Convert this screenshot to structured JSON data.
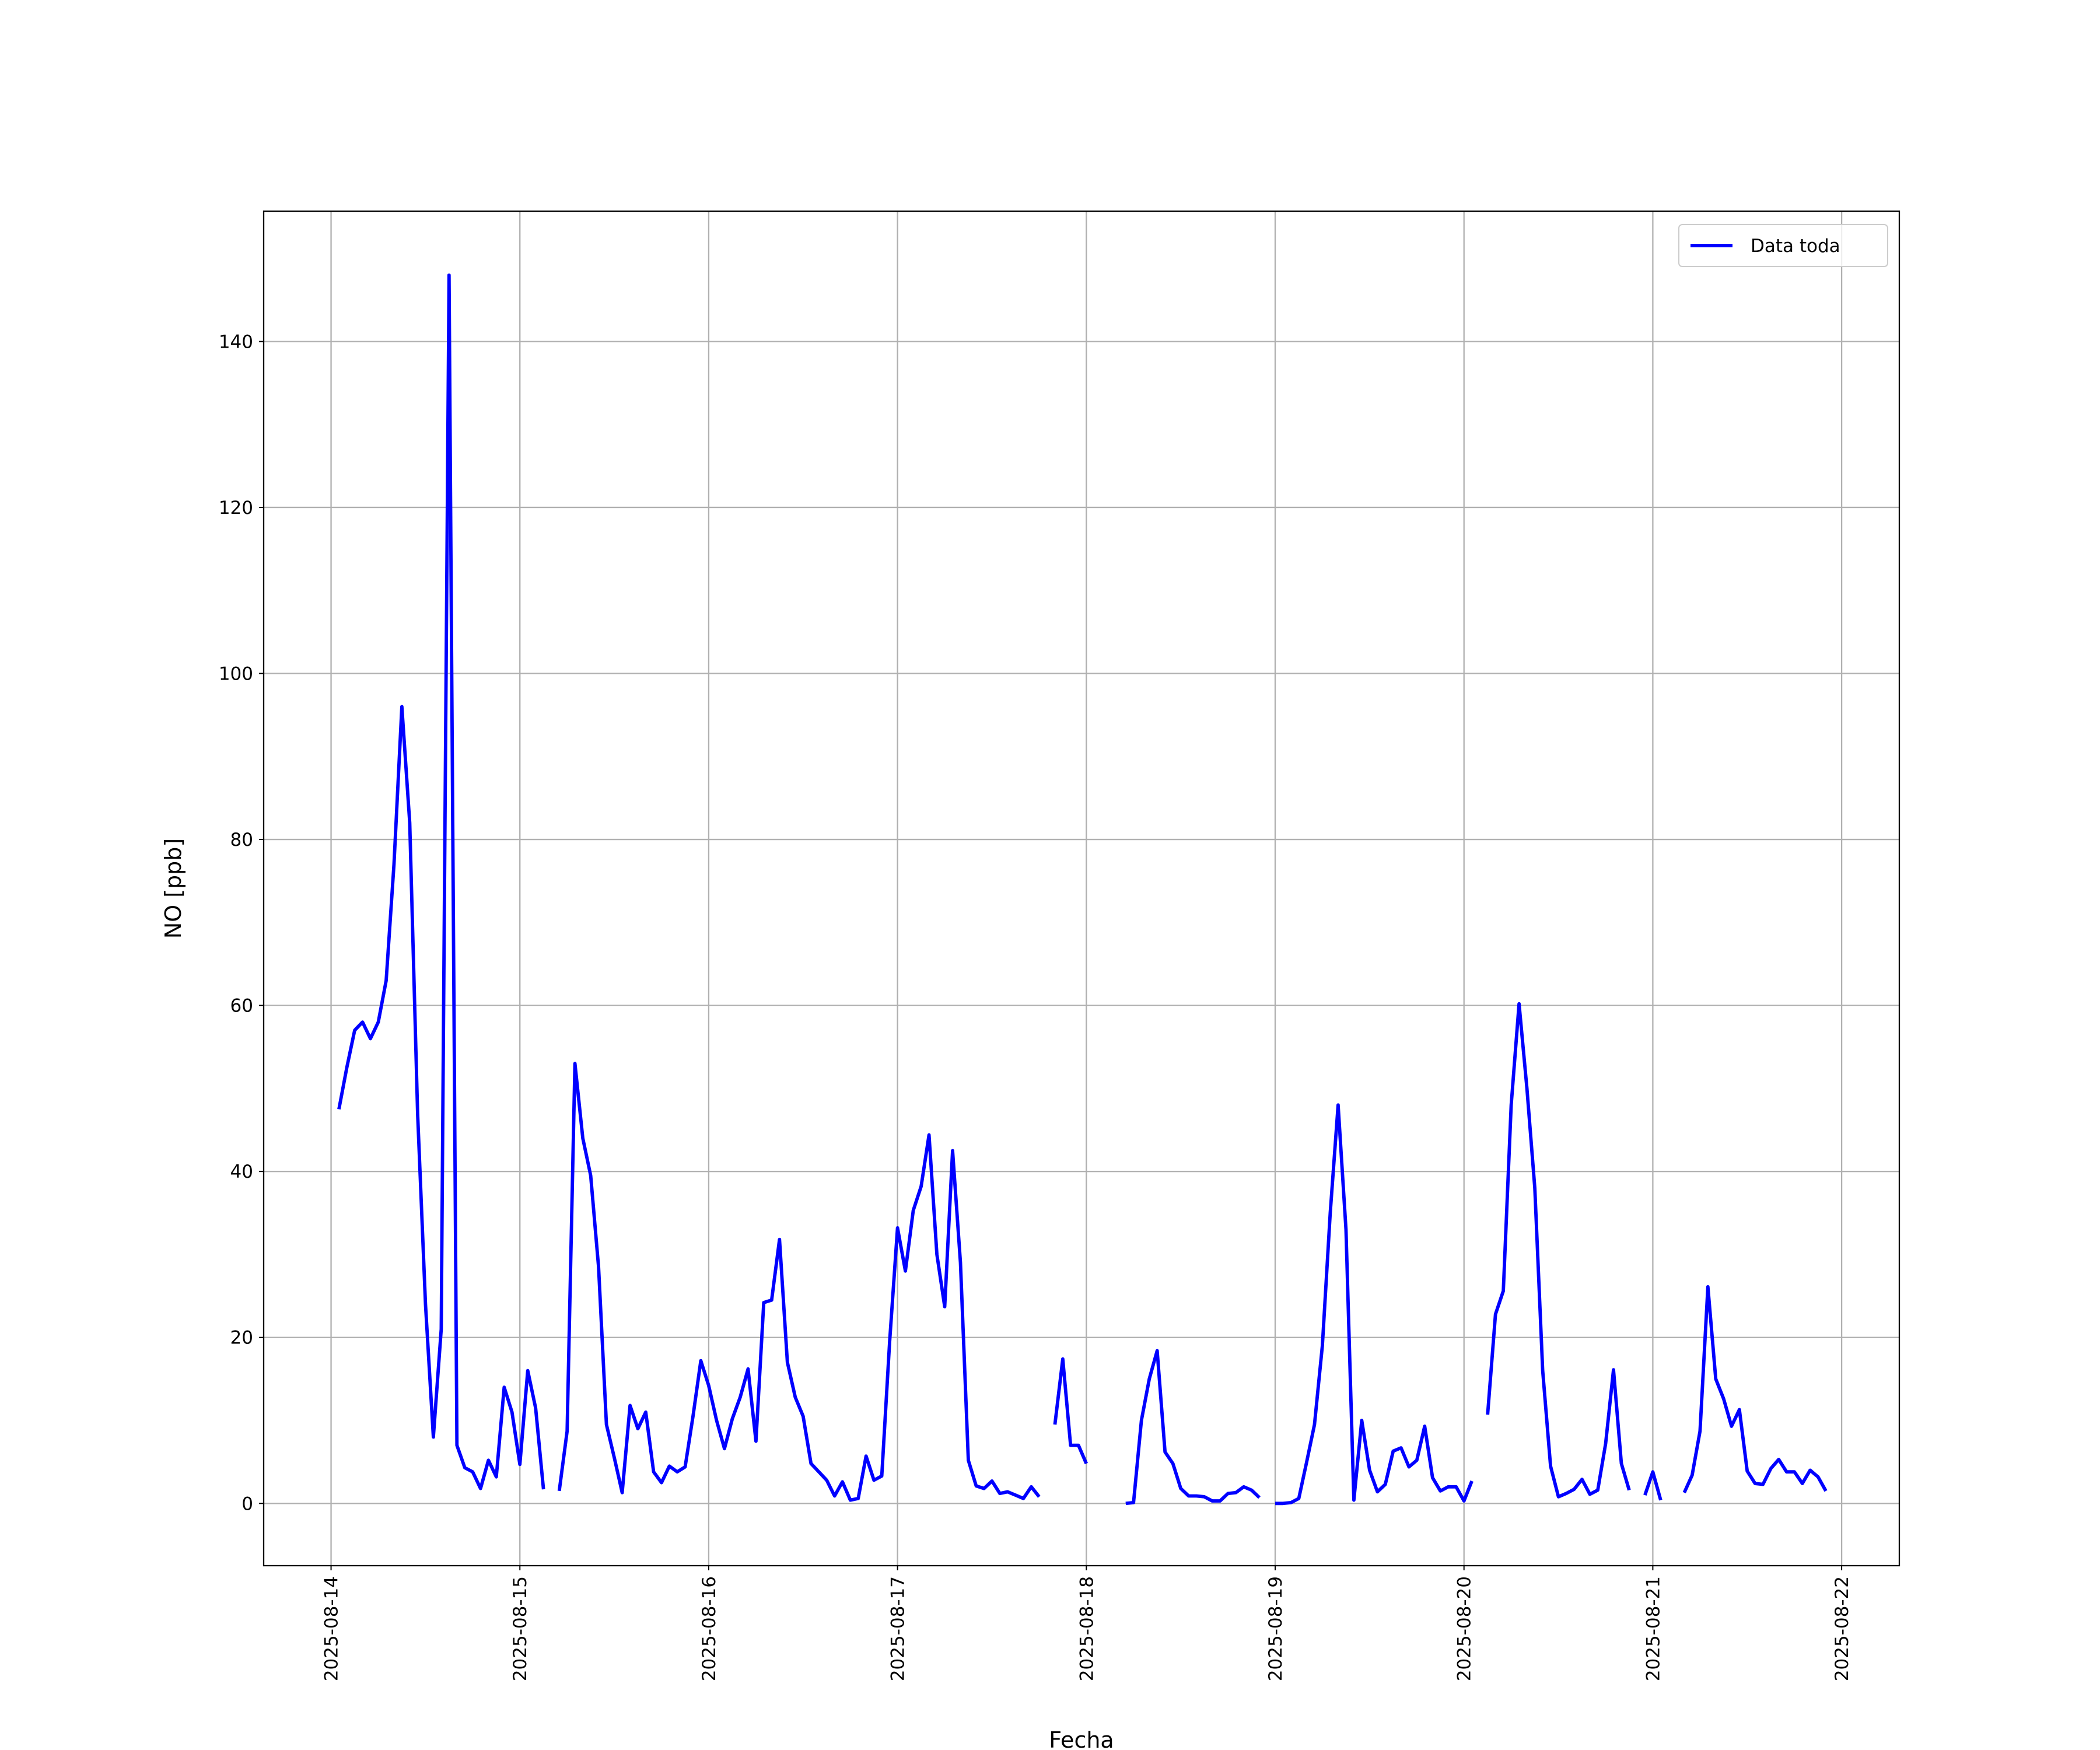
{
  "chart_data": {
    "type": "line",
    "xlabel": "Fecha",
    "ylabel": "NO [ppb]",
    "x": [
      "2025-08-14T01:00",
      "2025-08-14T02:00",
      "2025-08-14T03:00",
      "2025-08-14T04:00",
      "2025-08-14T05:00",
      "2025-08-14T06:00",
      "2025-08-14T07:00",
      "2025-08-14T08:00",
      "2025-08-14T09:00",
      "2025-08-14T10:00",
      "2025-08-14T11:00",
      "2025-08-14T12:00",
      "2025-08-14T13:00",
      "2025-08-14T14:00",
      "2025-08-14T15:00",
      "2025-08-14T16:00",
      "2025-08-14T17:00",
      "2025-08-14T18:00",
      "2025-08-14T19:00",
      "2025-08-14T20:00",
      "2025-08-14T21:00",
      "2025-08-14T22:00",
      "2025-08-14T23:00",
      "2025-08-15T00:00",
      "2025-08-15T01:00",
      "2025-08-15T02:00",
      "2025-08-15T03:00",
      "2025-08-15T04:00",
      "2025-08-15T05:00",
      "2025-08-15T06:00",
      "2025-08-15T07:00",
      "2025-08-15T08:00",
      "2025-08-15T09:00",
      "2025-08-15T10:00",
      "2025-08-15T11:00",
      "2025-08-15T12:00",
      "2025-08-15T13:00",
      "2025-08-15T14:00",
      "2025-08-15T15:00",
      "2025-08-15T16:00",
      "2025-08-15T17:00",
      "2025-08-15T18:00",
      "2025-08-15T19:00",
      "2025-08-15T20:00",
      "2025-08-15T21:00",
      "2025-08-15T22:00",
      "2025-08-15T23:00",
      "2025-08-16T00:00",
      "2025-08-16T01:00",
      "2025-08-16T02:00",
      "2025-08-16T03:00",
      "2025-08-16T04:00",
      "2025-08-16T05:00",
      "2025-08-16T06:00",
      "2025-08-16T07:00",
      "2025-08-16T08:00",
      "2025-08-16T09:00",
      "2025-08-16T10:00",
      "2025-08-16T11:00",
      "2025-08-16T12:00",
      "2025-08-16T13:00",
      "2025-08-16T14:00",
      "2025-08-16T15:00",
      "2025-08-16T16:00",
      "2025-08-16T17:00",
      "2025-08-16T18:00",
      "2025-08-16T19:00",
      "2025-08-16T20:00",
      "2025-08-16T21:00",
      "2025-08-16T22:00",
      "2025-08-16T23:00",
      "2025-08-17T00:00",
      "2025-08-17T01:00",
      "2025-08-17T02:00",
      "2025-08-17T03:00",
      "2025-08-17T04:00",
      "2025-08-17T05:00",
      "2025-08-17T06:00",
      "2025-08-17T07:00",
      "2025-08-17T08:00",
      "2025-08-17T09:00",
      "2025-08-17T10:00",
      "2025-08-17T11:00",
      "2025-08-17T12:00",
      "2025-08-17T13:00",
      "2025-08-17T14:00",
      "2025-08-17T15:00",
      "2025-08-17T16:00",
      "2025-08-17T17:00",
      "2025-08-17T18:00",
      "2025-08-17T19:00",
      "2025-08-17T20:00",
      "2025-08-17T21:00",
      "2025-08-17T22:00",
      "2025-08-17T23:00",
      "2025-08-18T00:00",
      "2025-08-18T01:00",
      "2025-08-18T02:00",
      "2025-08-18T03:00",
      "2025-08-18T04:00",
      "2025-08-18T05:00",
      "2025-08-18T06:00",
      "2025-08-18T07:00",
      "2025-08-18T08:00",
      "2025-08-18T09:00",
      "2025-08-18T10:00",
      "2025-08-18T11:00",
      "2025-08-18T12:00",
      "2025-08-18T13:00",
      "2025-08-18T14:00",
      "2025-08-18T15:00",
      "2025-08-18T16:00",
      "2025-08-18T17:00",
      "2025-08-18T18:00",
      "2025-08-18T19:00",
      "2025-08-18T20:00",
      "2025-08-18T21:00",
      "2025-08-18T22:00",
      "2025-08-18T23:00",
      "2025-08-19T00:00",
      "2025-08-19T01:00",
      "2025-08-19T02:00",
      "2025-08-19T03:00",
      "2025-08-19T04:00",
      "2025-08-19T05:00",
      "2025-08-19T06:00",
      "2025-08-19T07:00",
      "2025-08-19T08:00",
      "2025-08-19T09:00",
      "2025-08-19T10:00",
      "2025-08-19T11:00",
      "2025-08-19T12:00",
      "2025-08-19T13:00",
      "2025-08-19T14:00",
      "2025-08-19T15:00",
      "2025-08-19T16:00",
      "2025-08-19T17:00",
      "2025-08-19T18:00",
      "2025-08-19T19:00",
      "2025-08-19T20:00",
      "2025-08-19T21:00",
      "2025-08-19T22:00",
      "2025-08-19T23:00",
      "2025-08-20T00:00",
      "2025-08-20T01:00",
      "2025-08-20T02:00",
      "2025-08-20T03:00",
      "2025-08-20T04:00",
      "2025-08-20T05:00",
      "2025-08-20T06:00",
      "2025-08-20T07:00",
      "2025-08-20T08:00",
      "2025-08-20T09:00",
      "2025-08-20T10:00",
      "2025-08-20T11:00",
      "2025-08-20T12:00",
      "2025-08-20T13:00",
      "2025-08-20T14:00",
      "2025-08-20T15:00",
      "2025-08-20T16:00",
      "2025-08-20T17:00",
      "2025-08-20T18:00",
      "2025-08-20T19:00",
      "2025-08-20T20:00",
      "2025-08-20T21:00",
      "2025-08-20T22:00",
      "2025-08-20T23:00",
      "2025-08-21T00:00",
      "2025-08-21T01:00",
      "2025-08-21T02:00",
      "2025-08-21T03:00",
      "2025-08-21T04:00",
      "2025-08-21T05:00",
      "2025-08-21T06:00",
      "2025-08-21T07:00",
      "2025-08-21T08:00",
      "2025-08-21T09:00",
      "2025-08-21T10:00",
      "2025-08-21T11:00",
      "2025-08-21T12:00",
      "2025-08-21T13:00",
      "2025-08-21T14:00",
      "2025-08-21T15:00",
      "2025-08-21T16:00",
      "2025-08-21T17:00",
      "2025-08-21T18:00",
      "2025-08-21T19:00",
      "2025-08-21T20:00",
      "2025-08-21T21:00",
      "2025-08-21T22:00"
    ],
    "series": [
      {
        "name": "Data toda",
        "color": "#0000ff",
        "values": [
          47.5,
          52.5,
          57,
          58,
          56,
          58,
          63,
          77,
          96,
          82,
          47,
          24,
          8,
          21,
          148,
          7,
          4.3,
          3.8,
          1.8,
          5.2,
          3.2,
          14,
          11,
          4.7,
          16,
          11.5,
          1.7,
          null,
          1.5,
          8.7,
          53,
          44,
          39.5,
          28.5,
          9.5,
          5.5,
          1.3,
          11.8,
          9,
          11,
          3.8,
          2.5,
          4.5,
          3.8,
          4.4,
          10.5,
          17.2,
          14.2,
          10,
          6.6,
          10.2,
          12.8,
          16.2,
          7.5,
          24.2,
          24.5,
          31.8,
          17,
          12.8,
          10.5,
          4.8,
          3.8,
          2.8,
          0.9,
          2.6,
          0.4,
          0.6,
          5.7,
          2.8,
          3.3,
          19.5,
          33.2,
          28,
          35.3,
          38.2,
          44.4,
          30,
          23.7,
          42.5,
          29,
          5.2,
          2.1,
          1.8,
          2.7,
          1.2,
          1.4,
          1,
          0.6,
          2,
          0.8,
          null,
          9.5,
          17.4,
          7,
          7,
          4.8,
          null,
          null,
          null,
          null,
          0,
          0.1,
          10,
          15,
          18.4,
          6.2,
          4.8,
          1.8,
          0.9,
          0.9,
          0.8,
          0.3,
          0.3,
          1.2,
          1.3,
          2,
          1.6,
          0.7,
          null,
          0,
          0,
          0.1,
          0.6,
          5,
          9.5,
          19,
          35,
          48,
          33,
          0.4,
          10,
          4,
          1.4,
          2.3,
          6.3,
          6.7,
          4.4,
          5.2,
          9.3,
          3.1,
          1.5,
          2,
          2,
          0.3,
          2.7,
          null,
          10.7,
          22.8,
          25.6,
          48,
          60.2,
          50,
          38,
          16,
          4.5,
          0.8,
          1.2,
          1.7,
          2.9,
          1.1,
          1.6,
          7.2,
          16.1,
          4.8,
          1.6,
          null,
          1,
          3.8,
          0.4,
          null,
          null,
          1.3,
          3.4,
          8.7,
          26.1,
          15,
          12.6,
          9.3,
          11.3,
          3.9,
          2.4,
          2.3,
          4.2,
          5.3,
          3.8,
          3.8,
          2.4,
          4,
          3.2,
          1.5
        ]
      }
    ],
    "xlim": [
      "2025-08-13T15:26",
      "2025-08-22T07:20"
    ],
    "xticks": [
      "2025-08-14",
      "2025-08-15",
      "2025-08-16",
      "2025-08-17",
      "2025-08-18",
      "2025-08-19",
      "2025-08-20",
      "2025-08-21",
      "2025-08-22"
    ],
    "ylim": [
      -7.5,
      155.7
    ],
    "yticks": [
      0,
      20,
      40,
      60,
      80,
      100,
      120,
      140
    ],
    "grid": true,
    "legend": "upper right"
  }
}
